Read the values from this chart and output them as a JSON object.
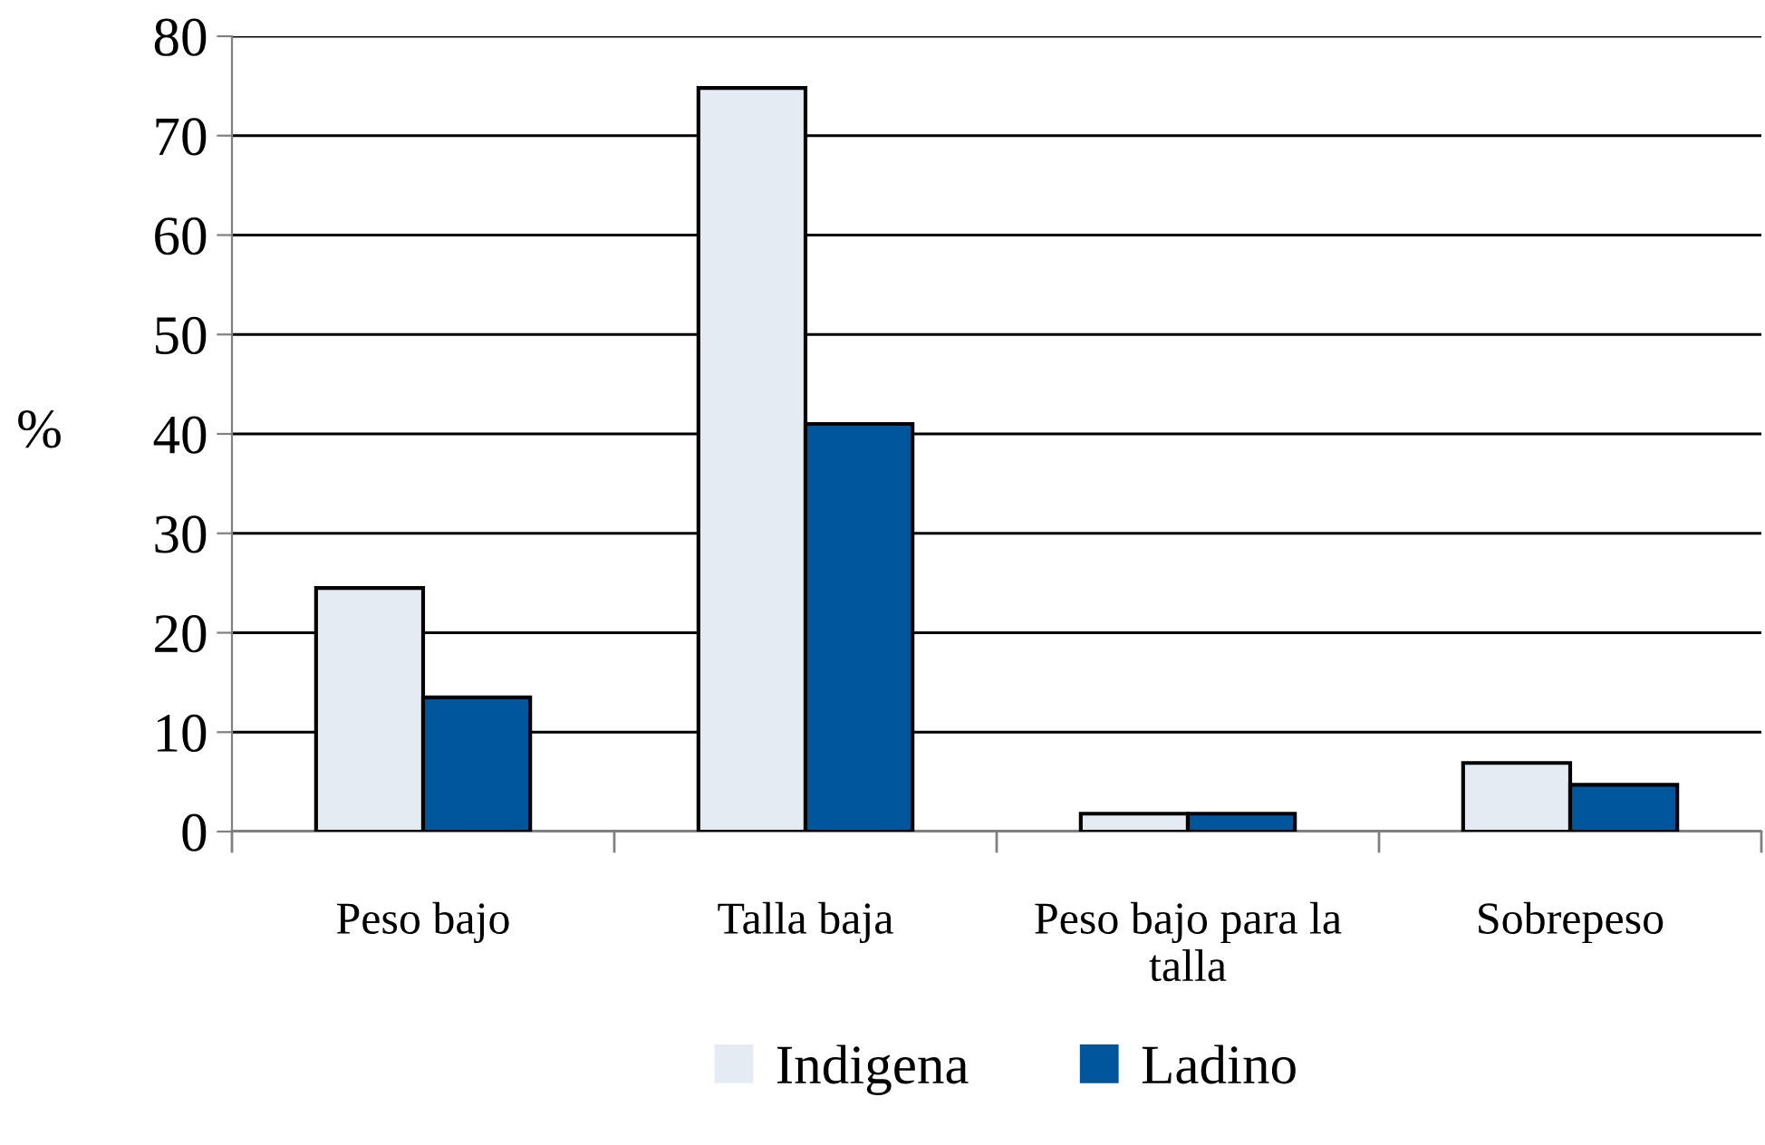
{
  "chart_data": {
    "type": "bar",
    "ylabel": "%",
    "categories": [
      "Peso bajo",
      "Talla baja",
      "Peso bajo para la\ntalla",
      "Sobrepeso"
    ],
    "series": [
      {
        "name": "Indigena",
        "color": "#e4ebf2",
        "values": [
          24.5,
          74.8,
          1.8,
          6.9
        ]
      },
      {
        "name": "Ladino",
        "color": "#00569a",
        "values": [
          13.5,
          41,
          1.8,
          4.7
        ]
      }
    ],
    "ylim": [
      0,
      80
    ],
    "yticks": [
      0,
      10,
      20,
      30,
      40,
      50,
      60,
      70,
      80
    ],
    "grid": "y",
    "legend": "bottom"
  }
}
